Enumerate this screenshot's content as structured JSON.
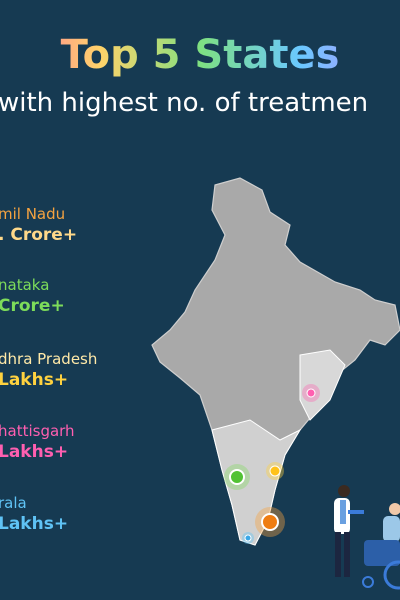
{
  "header": {
    "title": "Top 5 States",
    "subtitle": "with highest no. of treatmen"
  },
  "states": [
    {
      "name": "mil Nadu",
      "count": ". Crore+"
    },
    {
      "name": "nataka",
      "count": "Crore+"
    },
    {
      "name": "dhra Pradesh",
      "count": "Lakhs+"
    },
    {
      "name": "hattisgarh",
      "count": "Lakhs+"
    },
    {
      "name": "rala",
      "count": "Lakhs+"
    }
  ]
}
